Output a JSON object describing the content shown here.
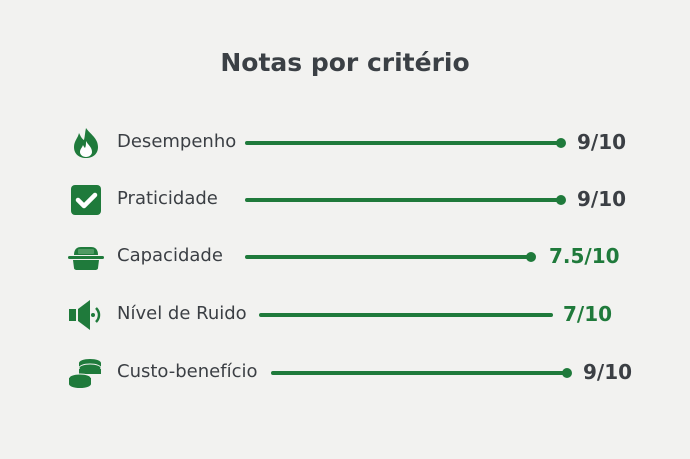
{
  "title": "Notas por critério",
  "colors": {
    "accent": "#1f7a3b",
    "text": "#3b3f44"
  },
  "criteria": [
    {
      "label": "Desempenho",
      "score": "9/10",
      "value": 9,
      "icon": "flame-icon",
      "score_color": "#3b3f44"
    },
    {
      "label": "Praticidade",
      "score": "9/10",
      "value": 9,
      "icon": "checkbox-icon",
      "score_color": "#3b3f44"
    },
    {
      "label": "Capacidade",
      "score": "7.5/10",
      "value": 7.5,
      "icon": "container-icon",
      "score_color": "#1f7a3b"
    },
    {
      "label": "Nível de Ruido",
      "score": "7/10",
      "value": 7,
      "icon": "speaker-icon",
      "score_color": "#1f7a3b"
    },
    {
      "label": "Custo-benefício",
      "score": "9/10",
      "value": 9,
      "icon": "coins-icon",
      "score_color": "#3b3f44"
    }
  ]
}
